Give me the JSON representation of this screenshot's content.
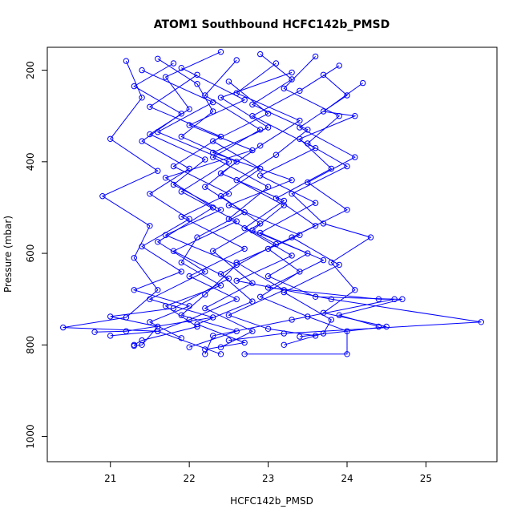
{
  "chart_data": {
    "type": "line",
    "title": "ATOM1 Southbound HCFC142b_PMSD",
    "xlabel": "HCFC142b_PMSD",
    "ylabel": "Pressure (mbar)",
    "xlim": [
      20.2,
      25.9
    ],
    "ylim": [
      150,
      1055
    ],
    "y_reversed": true,
    "x_ticks": [
      21,
      22,
      23,
      24,
      25
    ],
    "y_ticks": [
      200,
      400,
      600,
      800,
      1000
    ],
    "grid": false,
    "legend": "none",
    "marker": "open-circle",
    "color": "#0000ff",
    "series": [
      {
        "points": [
          [
            21.6,
            175
          ],
          [
            22.1,
            230
          ],
          [
            22.3,
            290
          ],
          [
            21.9,
            345
          ],
          [
            22.6,
            400
          ],
          [
            22.2,
            455
          ],
          [
            22.7,
            510
          ],
          [
            22.1,
            565
          ],
          [
            21.9,
            620
          ],
          [
            22.4,
            670
          ],
          [
            21.7,
            715
          ],
          [
            22.1,
            760
          ],
          [
            21.4,
            790
          ],
          [
            21.3,
            800
          ]
        ]
      },
      {
        "points": [
          [
            22.9,
            165
          ],
          [
            23.3,
            220
          ],
          [
            22.8,
            275
          ],
          [
            23.5,
            330
          ],
          [
            23.1,
            385
          ],
          [
            22.6,
            440
          ],
          [
            23.2,
            495
          ],
          [
            22.8,
            550
          ],
          [
            23.5,
            600
          ],
          [
            23.0,
            650
          ],
          [
            23.6,
            695
          ],
          [
            24.6,
            700
          ],
          [
            23.3,
            745
          ],
          [
            22.3,
            780
          ],
          [
            22.2,
            820
          ]
        ]
      },
      {
        "points": [
          [
            21.2,
            180
          ],
          [
            21.4,
            260
          ],
          [
            21.0,
            350
          ],
          [
            21.6,
            420
          ],
          [
            20.9,
            475
          ],
          [
            21.5,
            540
          ],
          [
            21.3,
            610
          ],
          [
            21.6,
            680
          ],
          [
            21.2,
            740
          ],
          [
            20.4,
            762
          ],
          [
            21.6,
            770
          ],
          [
            21.0,
            780
          ]
        ]
      },
      {
        "points": [
          [
            23.6,
            170
          ],
          [
            23.2,
            240
          ],
          [
            23.9,
            300
          ],
          [
            23.5,
            360
          ],
          [
            24.0,
            410
          ],
          [
            23.3,
            470
          ],
          [
            23.7,
            535
          ],
          [
            24.3,
            565
          ],
          [
            23.8,
            620
          ],
          [
            24.1,
            680
          ],
          [
            23.7,
            730
          ],
          [
            24.5,
            760
          ],
          [
            23.4,
            782
          ]
        ]
      },
      {
        "points": [
          [
            22.4,
            160
          ],
          [
            21.7,
            215
          ],
          [
            22.0,
            285
          ],
          [
            21.5,
            340
          ],
          [
            22.2,
            395
          ],
          [
            21.8,
            450
          ],
          [
            22.4,
            505
          ],
          [
            21.7,
            560
          ],
          [
            22.6,
            625
          ],
          [
            22.2,
            690
          ],
          [
            21.9,
            735
          ],
          [
            22.6,
            770
          ],
          [
            22.0,
            805
          ]
        ]
      },
      {
        "points": [
          [
            23.1,
            185
          ],
          [
            22.6,
            250
          ],
          [
            23.4,
            310
          ],
          [
            22.9,
            365
          ],
          [
            22.4,
            425
          ],
          [
            23.2,
            485
          ],
          [
            22.7,
            545
          ],
          [
            23.3,
            605
          ],
          [
            22.6,
            660
          ],
          [
            23.8,
            700
          ],
          [
            25.7,
            750
          ],
          [
            23.2,
            775
          ],
          [
            22.5,
            790
          ]
        ]
      },
      {
        "points": [
          [
            21.9,
            195
          ],
          [
            22.7,
            265
          ],
          [
            22.0,
            320
          ],
          [
            22.8,
            375
          ],
          [
            21.7,
            435
          ],
          [
            22.3,
            500
          ],
          [
            21.6,
            575
          ],
          [
            22.2,
            640
          ],
          [
            21.5,
            700
          ],
          [
            22.3,
            740
          ],
          [
            21.2,
            770
          ],
          [
            20.8,
            772
          ]
        ]
      },
      {
        "points": [
          [
            24.2,
            228
          ],
          [
            23.7,
            290
          ],
          [
            24.1,
            300
          ],
          [
            23.4,
            350
          ],
          [
            23.8,
            415
          ],
          [
            23.1,
            480
          ],
          [
            23.6,
            540
          ],
          [
            23.0,
            590
          ],
          [
            23.4,
            640
          ],
          [
            22.9,
            695
          ],
          [
            23.5,
            738
          ],
          [
            24.0,
            770
          ],
          [
            24.0,
            820
          ],
          [
            22.7,
            820
          ]
        ]
      },
      {
        "points": [
          [
            22.6,
            178
          ],
          [
            22.2,
            255
          ],
          [
            22.9,
            330
          ],
          [
            22.3,
            390
          ],
          [
            23.0,
            455
          ],
          [
            22.5,
            525
          ],
          [
            23.1,
            580
          ],
          [
            22.4,
            645
          ],
          [
            22.8,
            705
          ],
          [
            22.1,
            755
          ],
          [
            22.7,
            795
          ],
          [
            22.2,
            810
          ]
        ]
      },
      {
        "points": [
          [
            21.4,
            200
          ],
          [
            22.3,
            270
          ],
          [
            21.6,
            335
          ],
          [
            22.5,
            400
          ],
          [
            21.9,
            465
          ],
          [
            22.6,
            530
          ],
          [
            21.8,
            595
          ],
          [
            22.5,
            655
          ],
          [
            21.8,
            720
          ],
          [
            21.0,
            738
          ],
          [
            21.6,
            760
          ],
          [
            21.4,
            800
          ],
          [
            21.3,
            802
          ]
        ]
      },
      {
        "points": [
          [
            23.9,
            190
          ],
          [
            23.4,
            245
          ],
          [
            22.8,
            300
          ],
          [
            23.6,
            370
          ],
          [
            22.9,
            430
          ],
          [
            23.6,
            490
          ],
          [
            22.9,
            555
          ],
          [
            23.7,
            615
          ],
          [
            23.0,
            675
          ],
          [
            24.4,
            700
          ],
          [
            24.7,
            700
          ],
          [
            23.9,
            735
          ],
          [
            24.4,
            760
          ]
        ]
      },
      {
        "points": [
          [
            22.1,
            210
          ],
          [
            21.5,
            280
          ],
          [
            22.4,
            345
          ],
          [
            21.8,
            410
          ],
          [
            22.5,
            470
          ],
          [
            21.9,
            520
          ],
          [
            22.7,
            590
          ],
          [
            22.0,
            650
          ],
          [
            22.6,
            700
          ],
          [
            22.0,
            745
          ],
          [
            21.6,
            770
          ],
          [
            22.4,
            820
          ]
        ]
      },
      {
        "points": [
          [
            23.3,
            205
          ],
          [
            22.4,
            260
          ],
          [
            23.0,
            325
          ],
          [
            22.3,
            380
          ],
          [
            23.3,
            440
          ],
          [
            22.5,
            495
          ],
          [
            23.4,
            560
          ],
          [
            22.6,
            620
          ],
          [
            23.2,
            680
          ],
          [
            22.5,
            735
          ],
          [
            23.0,
            765
          ],
          [
            23.6,
            780
          ]
        ]
      },
      {
        "points": [
          [
            21.8,
            185
          ],
          [
            21.3,
            235
          ],
          [
            21.9,
            295
          ],
          [
            21.4,
            355
          ],
          [
            22.0,
            415
          ],
          [
            21.5,
            470
          ],
          [
            22.0,
            525
          ],
          [
            21.4,
            585
          ],
          [
            21.9,
            640
          ],
          [
            21.3,
            680
          ],
          [
            22.0,
            715
          ],
          [
            21.5,
            750
          ],
          [
            21.9,
            785
          ]
        ]
      },
      {
        "points": [
          [
            23.7,
            210
          ],
          [
            24.0,
            255
          ],
          [
            23.4,
            325
          ],
          [
            24.1,
            390
          ],
          [
            23.5,
            445
          ],
          [
            24.0,
            505
          ],
          [
            23.3,
            565
          ],
          [
            23.9,
            625
          ],
          [
            23.2,
            685
          ],
          [
            23.8,
            745
          ],
          [
            23.7,
            775
          ],
          [
            23.2,
            800
          ]
        ]
      },
      {
        "points": [
          [
            22.5,
            225
          ],
          [
            23.0,
            295
          ],
          [
            22.3,
            355
          ],
          [
            22.9,
            415
          ],
          [
            22.4,
            475
          ],
          [
            22.9,
            535
          ],
          [
            22.3,
            595
          ],
          [
            22.8,
            665
          ],
          [
            22.2,
            720
          ],
          [
            22.8,
            770
          ],
          [
            22.4,
            805
          ]
        ]
      }
    ]
  }
}
